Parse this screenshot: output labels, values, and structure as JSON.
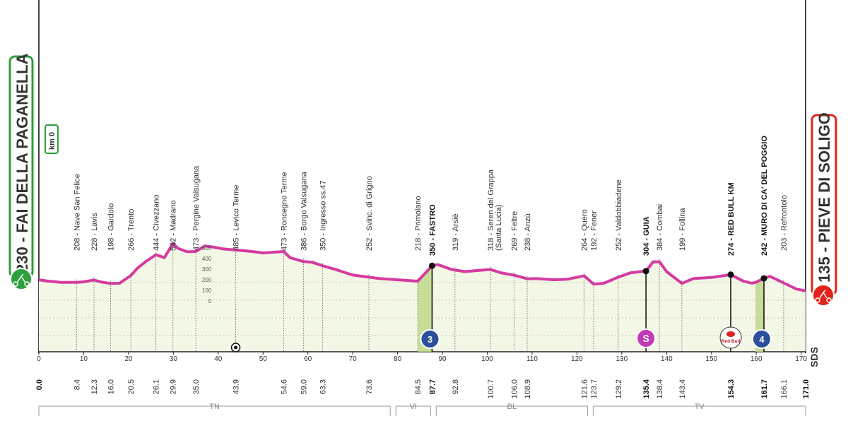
{
  "start": {
    "label": "230 - FAI DELLA PAGANELLA",
    "km_badge": "km 0"
  },
  "finish": {
    "label": "135 - PIEVE DI SOLIGO"
  },
  "watermark": "SDS",
  "colors": {
    "profile": "#d63aa0",
    "start": "#2e9e3e",
    "finish": "#e2231a",
    "fill": "#f3f7e6",
    "climb": "#bfd98a"
  },
  "chart_data": {
    "type": "area",
    "x_km": [
      0,
      2,
      5,
      8.4,
      10,
      12.3,
      14,
      16,
      18,
      20.5,
      22,
      24,
      26.1,
      28,
      29.9,
      31,
      33,
      35,
      37,
      39,
      41,
      43.9,
      46,
      48,
      50,
      52,
      54.6,
      56,
      59,
      61,
      63.3,
      66,
      70,
      73.6,
      76,
      80,
      84.5,
      87.7,
      89,
      92,
      95,
      98,
      100.7,
      103,
      106,
      108.9,
      111,
      115,
      118,
      121.6,
      123.7,
      126,
      129.2,
      132,
      135.4,
      137,
      138.4,
      140,
      143.4,
      146,
      150,
      154.3,
      157,
      159,
      160,
      161.7,
      163,
      166.1,
      169,
      171
    ],
    "elevation_m": [
      230,
      218,
      208,
      208,
      212,
      228,
      210,
      198,
      200,
      266,
      330,
      390,
      444,
      420,
      542,
      500,
      470,
      473,
      520,
      510,
      495,
      485,
      478,
      470,
      460,
      465,
      473,
      420,
      386,
      380,
      350,
      320,
      270,
      252,
      240,
      230,
      218,
      350,
      360,
      319,
      300,
      310,
      318,
      290,
      269,
      238,
      240,
      230,
      235,
      264,
      192,
      200,
      252,
      290,
      304,
      384,
      384,
      300,
      199,
      240,
      250,
      274,
      220,
      200,
      210,
      242,
      260,
      203,
      150,
      135
    ],
    "x_range": [
      0,
      171
    ],
    "x_ticks": [
      0,
      10,
      20,
      30,
      40,
      50,
      60,
      70,
      80,
      90,
      100,
      110,
      120,
      130,
      140,
      150,
      160,
      170
    ],
    "altitude_scale": [
      "500",
      "400",
      "300",
      "200",
      "100",
      "0"
    ],
    "waypoints": [
      {
        "km": "0.0",
        "label": "",
        "bold": true,
        "elev": 230
      },
      {
        "km": "8.4",
        "label": "208 - Nave San Felice",
        "elev": 208
      },
      {
        "km": "12.3",
        "label": "228 - Lavis",
        "elev": 228
      },
      {
        "km": "16.0",
        "label": "198 - Gardolo",
        "elev": 198
      },
      {
        "km": "20.5",
        "label": "266 - Trento",
        "elev": 266
      },
      {
        "km": "26.1",
        "label": "444 - Civezzano",
        "elev": 444
      },
      {
        "km": "29.9",
        "label": "542 - Madrano",
        "elev": 542
      },
      {
        "km": "35.0",
        "label": "473 - Pergine Valsugana",
        "elev": 473
      },
      {
        "km": "43.9",
        "label": "485 - Levico Terme",
        "elev": 485
      },
      {
        "km": "54.6",
        "label": "473 - Roncegno Terme",
        "elev": 473
      },
      {
        "km": "59.0",
        "label": "386 - Borgo Valsugana",
        "elev": 386
      },
      {
        "km": "63.3",
        "label": "350 - Ingresso ss.47",
        "elev": 350
      },
      {
        "km": "73.6",
        "label": "252 - Svinc. di Grigno",
        "elev": 252
      },
      {
        "km": "84.5",
        "label": "218 - Primolano",
        "elev": 218
      },
      {
        "km": "87.7",
        "label": "350 - FASTRO",
        "bold": true,
        "dot": true,
        "elev": 350
      },
      {
        "km": "92.8",
        "label": "319 - Arsiè",
        "elev": 319
      },
      {
        "km": "100.7",
        "label": "318 - Seren del Grappa",
        "label2": "(Santa Lucia)",
        "elev": 318
      },
      {
        "km": "106.0",
        "label": "269 - Feltre",
        "elev": 269
      },
      {
        "km": "108.9",
        "label": "238 - Anzù",
        "elev": 238
      },
      {
        "km": "121.6",
        "label": "264 - Quero",
        "elev": 264
      },
      {
        "km": "123.7",
        "label": "192 - Fener",
        "elev": 192
      },
      {
        "km": "129.2",
        "label": "252 - Valdobbiadene",
        "elev": 252
      },
      {
        "km": "135.4",
        "label": "304 - GUIA",
        "bold": true,
        "dot": true,
        "elev": 304
      },
      {
        "km": "138.4",
        "label": "384 - Combai",
        "elev": 384
      },
      {
        "km": "143.4",
        "label": "199 - Follina",
        "elev": 199
      },
      {
        "km": "154.3",
        "label": "274 - RED BULL KM",
        "bold": true,
        "dot": true,
        "elev": 274
      },
      {
        "km": "161.7",
        "label": "242 - MURO DI CA' DEL POGGIO",
        "bold": true,
        "dot": true,
        "elev": 242
      },
      {
        "km": "166.1",
        "label": "203 - Refrontolo",
        "elev": 203
      },
      {
        "km": "171.0",
        "label": "",
        "bold": true,
        "elev": 135
      }
    ],
    "climbs": [
      {
        "start_km": 84.5,
        "end_km": 87.7,
        "badge": "3",
        "color": "#2b4f9c"
      },
      {
        "start_km": 159.8,
        "end_km": 161.7,
        "badge": "4",
        "color": "#2b4f9c"
      }
    ],
    "sprint": {
      "km": 135.4,
      "badge": "S",
      "color": "#c23ab5"
    },
    "redbull": {
      "km": 154.3,
      "text": "Red Bull"
    },
    "feed_km": 43.9,
    "regions": [
      {
        "label": "TN",
        "from_km": 0,
        "to_km": 79
      },
      {
        "label": "VI",
        "from_km": 79,
        "to_km": 88
      },
      {
        "label": "BL",
        "from_km": 88,
        "to_km": 123
      },
      {
        "label": "TV",
        "from_km": 123,
        "to_km": 171
      }
    ]
  }
}
